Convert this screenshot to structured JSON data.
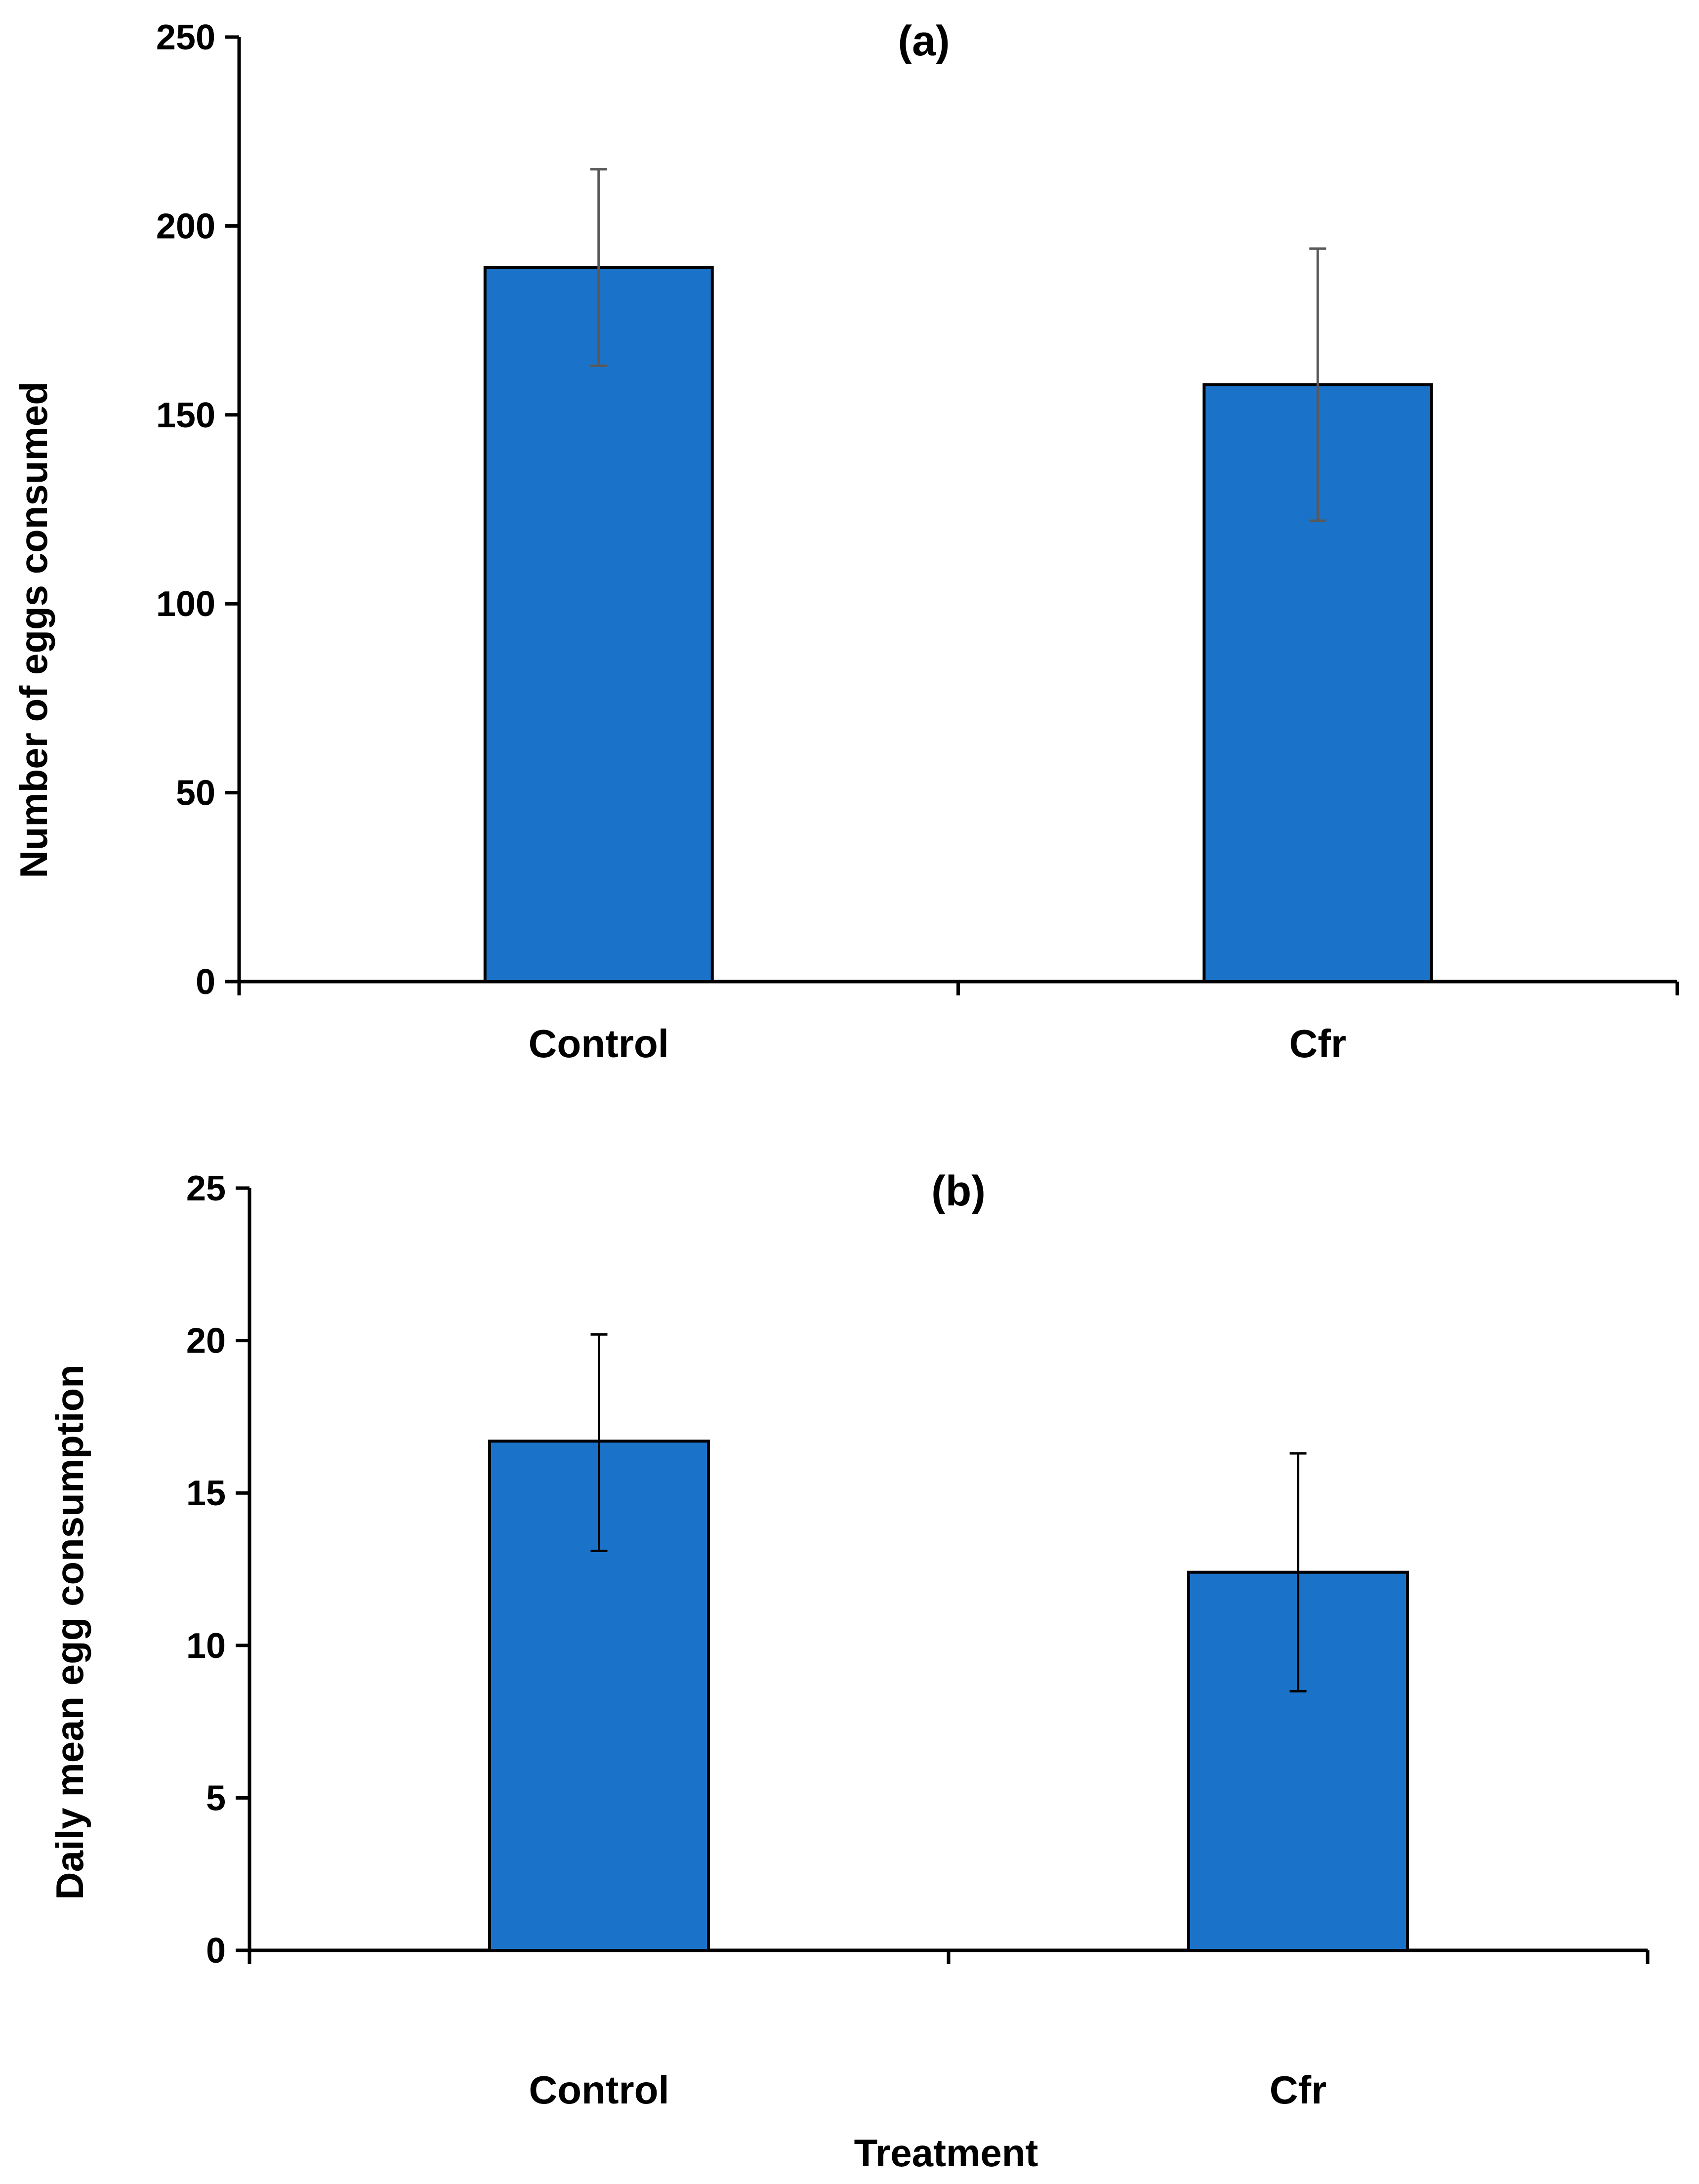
{
  "chart_data": [
    {
      "type": "bar",
      "panel_label": "(a)",
      "categories": [
        "Control",
        "Cfr"
      ],
      "values": [
        189,
        158
      ],
      "error_upper": [
        215,
        194
      ],
      "error_lower": [
        163,
        122
      ],
      "xlabel": "",
      "ylabel": "Number of eggs consumed",
      "ylim": [
        0,
        250
      ],
      "yticks": [
        "0",
        "50",
        "100",
        "150",
        "200",
        "250"
      ],
      "bar_color": "#1a73c8",
      "error_color": "#595959",
      "grid": false
    },
    {
      "type": "bar",
      "panel_label": "(b)",
      "categories": [
        "Control",
        "Cfr"
      ],
      "values": [
        16.7,
        12.4
      ],
      "error_upper": [
        20.2,
        16.3
      ],
      "error_lower": [
        13.1,
        8.5
      ],
      "xlabel": "Treatment",
      "ylabel": "Daily mean egg consumption",
      "ylim": [
        0,
        25
      ],
      "yticks": [
        "0",
        "5",
        "10",
        "15",
        "20",
        "25"
      ],
      "bar_color": "#1a73c8",
      "error_color": "#000000",
      "grid": false
    }
  ]
}
